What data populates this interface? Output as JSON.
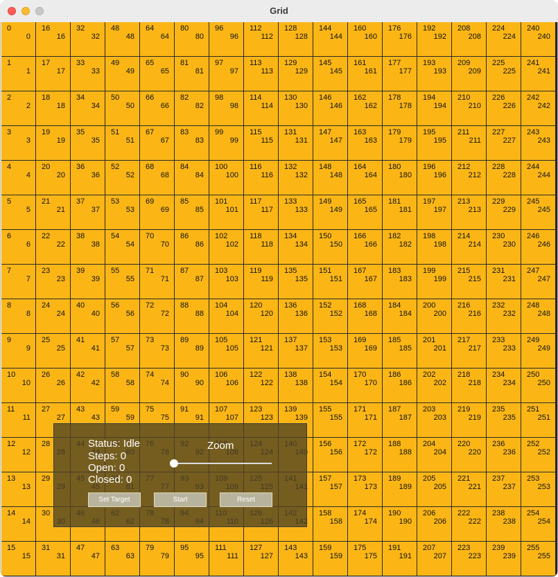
{
  "window": {
    "title": "Grid"
  },
  "grid": {
    "rows": 16,
    "cols": 16,
    "cell_color": "#fbb616",
    "line_color": "#2a2a2a"
  },
  "panel": {
    "status": "Status: Idle",
    "steps": "Steps: 0",
    "open": "Open: 0",
    "closed": "Closed: 0",
    "zoom_label": "Zoom",
    "zoom_level": 0,
    "buttons": {
      "set_target": "Set Target",
      "start": "Start",
      "reset": "Reset"
    }
  }
}
